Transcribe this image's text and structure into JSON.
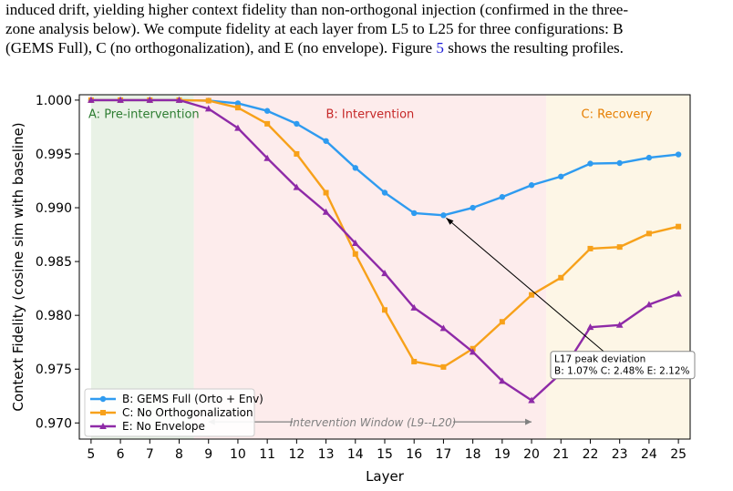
{
  "paragraph": {
    "line1": "induced drift, yielding higher context fidelity than non-orthogonal injection (confirmed in the three-",
    "line2": "zone analysis below). We compute fidelity at each layer from L5 to L25 for three configurations: B",
    "line3_pre": "(GEMS Full), C (no orthogonalization), and E (no envelope). Figure ",
    "figure_ref": "5",
    "line3_post": " shows the resulting profiles."
  },
  "chart_data": {
    "type": "line",
    "title": "",
    "xlabel": "Layer",
    "ylabel": "Context Fidelity (cosine sim with baseline)",
    "xlim": [
      4.6,
      25.4
    ],
    "ylim": [
      0.9685,
      1.0005
    ],
    "x": [
      5,
      6,
      7,
      8,
      9,
      10,
      11,
      12,
      13,
      14,
      15,
      16,
      17,
      18,
      19,
      20,
      21,
      22,
      23,
      24,
      25
    ],
    "xticks": [
      "5",
      "6",
      "7",
      "8",
      "9",
      "10",
      "11",
      "12",
      "13",
      "14",
      "15",
      "16",
      "17",
      "18",
      "19",
      "20",
      "21",
      "22",
      "23",
      "24",
      "25"
    ],
    "yticks": [
      "0.970",
      "0.975",
      "0.980",
      "0.985",
      "0.990",
      "0.995",
      "1.000"
    ],
    "ytick_values": [
      0.97,
      0.975,
      0.98,
      0.985,
      0.99,
      0.995,
      1.0
    ],
    "grid": false,
    "legend_position": "lower-left",
    "zones": [
      {
        "label": "A: Pre-intervention",
        "from": 5,
        "to": 8.5,
        "color": "#e9f2e6",
        "text_color": "#2e7d32"
      },
      {
        "label": "B: Intervention",
        "from": 8.5,
        "to": 20.5,
        "color": "#fdecec",
        "text_color": "#c62828"
      },
      {
        "label": "C: Recovery",
        "from": 20.5,
        "to": 25.4,
        "color": "#fdf6e6",
        "text_color": "#e67e00"
      }
    ],
    "series": [
      {
        "name": "B: GEMS Full (Orto + Env)",
        "color": "#2e9bf0",
        "marker": "circle",
        "values": [
          1.0,
          1.0,
          1.0,
          1.0,
          0.99995,
          0.9997,
          0.999,
          0.9978,
          0.9962,
          0.9937,
          0.9914,
          0.9895,
          0.9893,
          0.99,
          0.991,
          0.9921,
          0.9929,
          0.9941,
          0.99415,
          0.99465,
          0.99495
        ]
      },
      {
        "name": "C: No Orthogonalization",
        "color": "#f7a11a",
        "marker": "square",
        "values": [
          1.0,
          1.0,
          1.0,
          1.0,
          0.99995,
          0.9993,
          0.9978,
          0.995,
          0.9914,
          0.9857,
          0.9805,
          0.9757,
          0.9752,
          0.9769,
          0.9794,
          0.9819,
          0.9835,
          0.9862,
          0.98635,
          0.9876,
          0.98825
        ]
      },
      {
        "name": "E: No Envelope",
        "color": "#8e2aa7",
        "marker": "triangle",
        "values": [
          1.0,
          1.0,
          1.0,
          1.0,
          0.9992,
          0.9974,
          0.9946,
          0.9919,
          0.9896,
          0.9867,
          0.9839,
          0.9807,
          0.9788,
          0.9766,
          0.9739,
          0.9721,
          0.9746,
          0.9789,
          0.9791,
          0.981,
          0.982
        ]
      }
    ],
    "annotations": {
      "peak_box_line1": "L17 peak deviation",
      "peak_box_line2": "B: 1.07%  C: 2.48%  E: 2.12%",
      "peak_point": {
        "x": 17,
        "y": 0.9893
      },
      "window_label": "Intervention Window (L9--L20)",
      "window_from": 9,
      "window_to": 20,
      "window_y": 0.9701
    }
  }
}
